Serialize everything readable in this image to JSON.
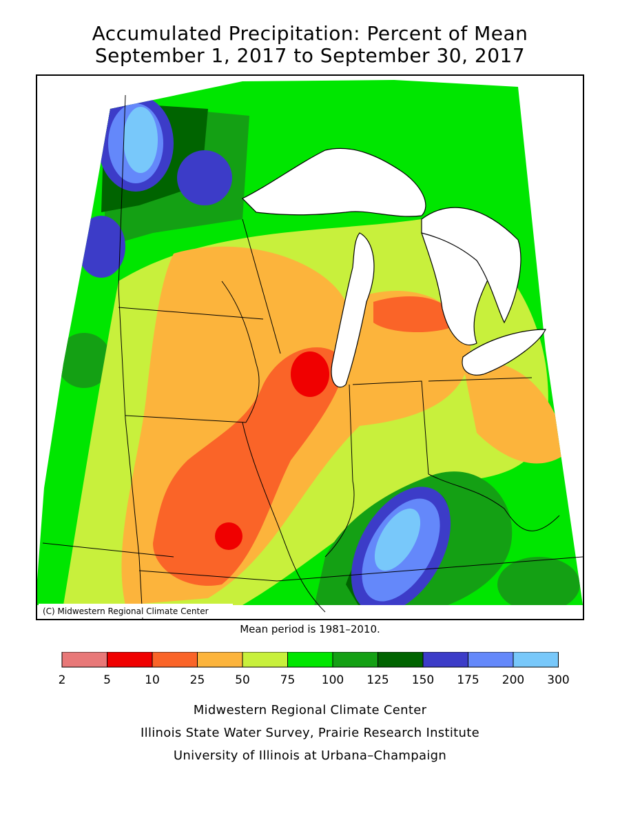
{
  "title_line1": "Accumulated Precipitation: Percent of Mean",
  "title_line2": "September 1, 2017 to September 30, 2017",
  "copyright": "(C) Midwestern Regional Climate Center",
  "mean_period": "Mean period is 1981–2010.",
  "legend": {
    "ticks": [
      "2",
      "5",
      "10",
      "25",
      "50",
      "75",
      "100",
      "125",
      "150",
      "175",
      "200",
      "300"
    ],
    "colors": [
      "#e87878",
      "#f00000",
      "#fa6428",
      "#fcb43c",
      "#c8f03c",
      "#00e600",
      "#14a014",
      "#006400",
      "#3c3cc8",
      "#6488fa",
      "#78c8fa"
    ]
  },
  "footer": {
    "line1": "Midwestern Regional Climate Center",
    "line2": "Illinois State Water Survey, Prairie Research Institute",
    "line3": "University of Illinois at Urbana–Champaign"
  }
}
